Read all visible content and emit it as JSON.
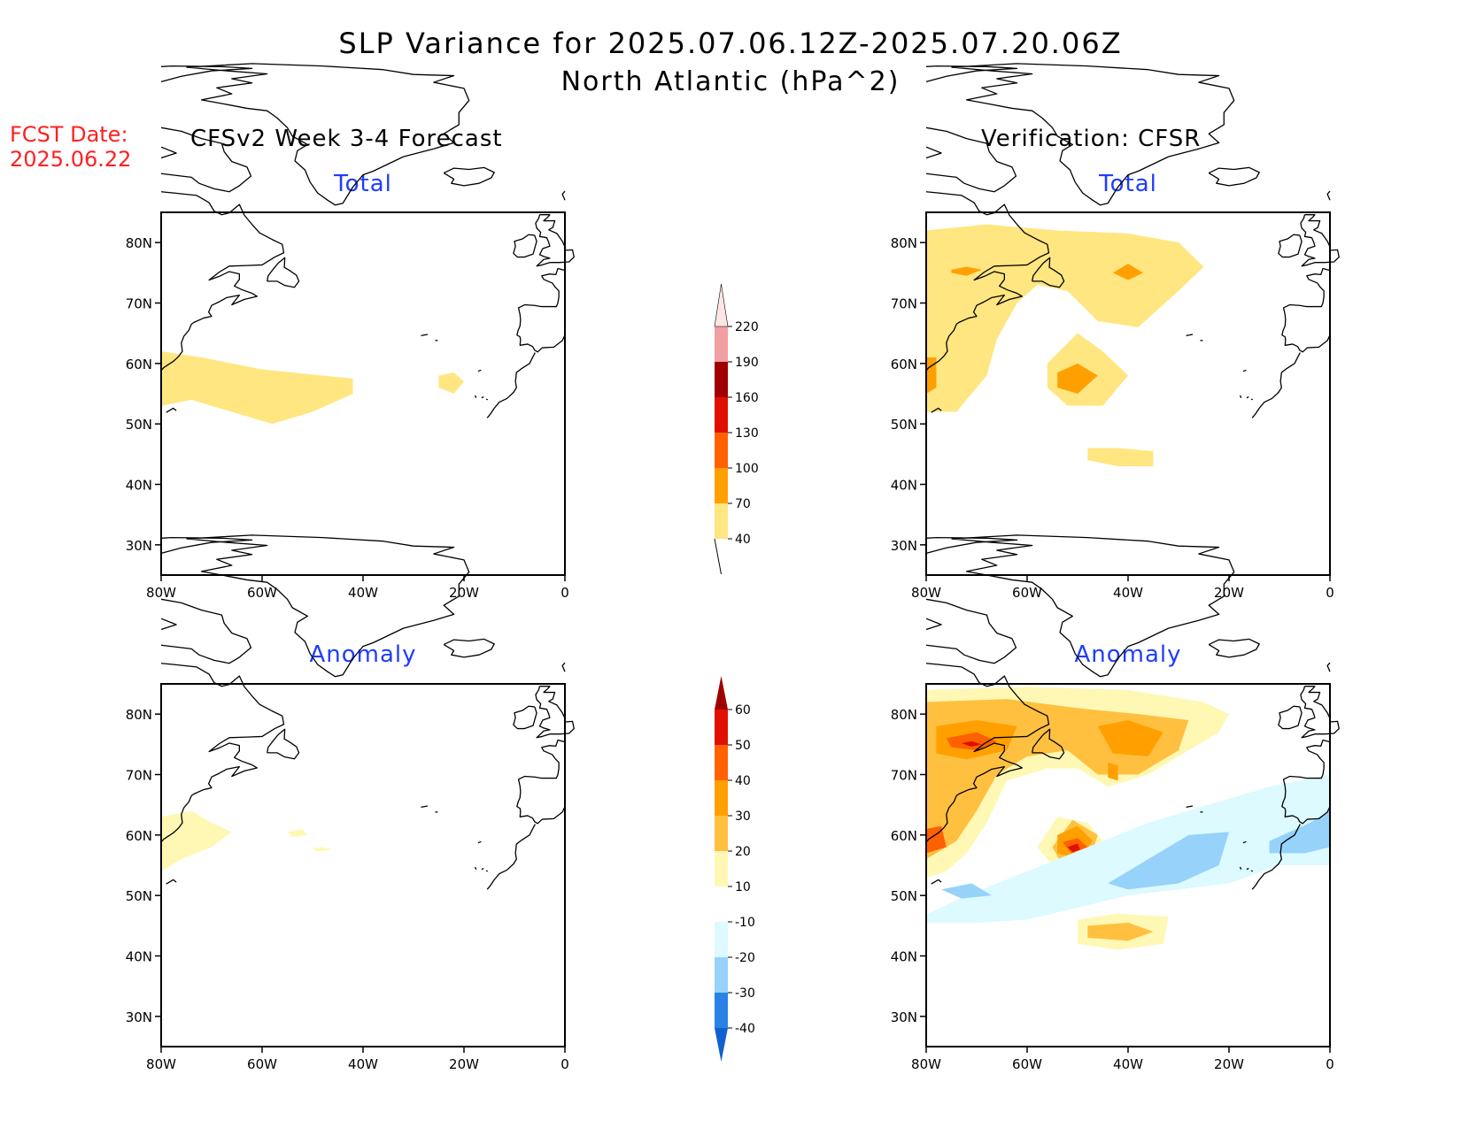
{
  "title": {
    "line1": "SLP Variance for 2025.07.06.12Z-2025.07.20.06Z",
    "line2": "North Atlantic (hPa^2)"
  },
  "fcst_date": {
    "label": "FCST Date:",
    "date": "2025.06.22"
  },
  "columns": {
    "left": "CFSv2 Week 3-4 Forecast",
    "right": "Verification: CFSR"
  },
  "panel_titles": {
    "total": "Total",
    "anomaly": "Anomaly"
  },
  "axes": {
    "x_ticks": [
      "80W",
      "60W",
      "40W",
      "20W",
      "0"
    ],
    "y_ticks": [
      "80N",
      "70N",
      "60N",
      "50N",
      "40N",
      "30N"
    ]
  },
  "colors": {
    "title_text": "#000000",
    "fcst_text": "#ff2020",
    "subtitle_text": "#1f3cff"
  },
  "chart_data": {
    "type": "heatmap",
    "domain": {
      "lon_range": [
        -80,
        0
      ],
      "lat_range": [
        25,
        85
      ]
    },
    "total_colorbar": {
      "levels": [
        40,
        70,
        100,
        130,
        160,
        190,
        220
      ],
      "colors": [
        "#ffe680",
        "#ffa000",
        "#ff6000",
        "#e01000",
        "#a00000",
        "#f0a0a0",
        "#ffe6e6"
      ]
    },
    "anomaly_colorbar": {
      "levels": [
        -40,
        -30,
        -20,
        -10,
        10,
        20,
        30,
        40,
        50,
        60
      ],
      "colors": [
        "#1060d0",
        "#2a82e6",
        "#96d2fa",
        "#dcfaff",
        "#ffffff",
        "#fff8b4",
        "#ffc040",
        "#ffa000",
        "#ff6000",
        "#e01000",
        "#a00000"
      ]
    },
    "panels": [
      {
        "id": "forecast-total",
        "regions": [
          {
            "level": 40,
            "polygon": [
              [
                -80,
                62
              ],
              [
                -72,
                61
              ],
              [
                -60,
                59
              ],
              [
                -48,
                58
              ],
              [
                -42,
                57.5
              ],
              [
                -42,
                55
              ],
              [
                -50,
                52
              ],
              [
                -58,
                50
              ],
              [
                -66,
                52
              ],
              [
                -74,
                54
              ],
              [
                -80,
                53
              ]
            ]
          },
          {
            "level": 40,
            "polygon": [
              [
                -25,
                58
              ],
              [
                -22,
                58.5
              ],
              [
                -20,
                57
              ],
              [
                -22,
                55
              ],
              [
                -25,
                56
              ]
            ]
          }
        ]
      },
      {
        "id": "verification-total",
        "regions": [
          {
            "level": 40,
            "polygon": [
              [
                -80,
                82
              ],
              [
                -68,
                83
              ],
              [
                -54,
                82
              ],
              [
                -40,
                81.5
              ],
              [
                -30,
                80
              ],
              [
                -25,
                76
              ],
              [
                -30,
                72
              ],
              [
                -38,
                66
              ],
              [
                -46,
                67
              ],
              [
                -52,
                72
              ],
              [
                -58,
                73
              ],
              [
                -62,
                70
              ],
              [
                -66,
                64
              ],
              [
                -68,
                58
              ],
              [
                -74,
                52
              ],
              [
                -80,
                52
              ]
            ]
          },
          {
            "level": 40,
            "polygon": [
              [
                -56,
                60
              ],
              [
                -50,
                65
              ],
              [
                -45,
                62
              ],
              [
                -40,
                58
              ],
              [
                -45,
                53
              ],
              [
                -52,
                53
              ],
              [
                -56,
                56
              ]
            ]
          },
          {
            "level": 40,
            "polygon": [
              [
                -48,
                46
              ],
              [
                -42,
                46
              ],
              [
                -35,
                45.5
              ],
              [
                -35,
                43
              ],
              [
                -42,
                43
              ],
              [
                -48,
                44
              ]
            ]
          },
          {
            "level": 70,
            "polygon": [
              [
                -75,
                75.5
              ],
              [
                -72,
                76
              ],
              [
                -69,
                75.5
              ],
              [
                -72,
                74.5
              ],
              [
                -75,
                75
              ]
            ]
          },
          {
            "level": 70,
            "polygon": [
              [
                -43,
                75
              ],
              [
                -40,
                76.5
              ],
              [
                -37,
                75
              ],
              [
                -40,
                73.8
              ]
            ]
          },
          {
            "level": 70,
            "polygon": [
              [
                -80,
                61
              ],
              [
                -78,
                61
              ],
              [
                -78,
                56
              ],
              [
                -80,
                55
              ]
            ]
          },
          {
            "level": 70,
            "polygon": [
              [
                -54,
                58.5
              ],
              [
                -50,
                60
              ],
              [
                -46,
                58
              ],
              [
                -50,
                55
              ],
              [
                -54,
                56
              ]
            ]
          }
        ]
      },
      {
        "id": "forecast-anomaly",
        "regions": [
          {
            "level": 10,
            "polygon": [
              [
                -80,
                63
              ],
              [
                -74,
                64
              ],
              [
                -70,
                62
              ],
              [
                -66,
                60.5
              ],
              [
                -70,
                58
              ],
              [
                -76,
                56
              ],
              [
                -80,
                54
              ]
            ]
          },
          {
            "level": 10,
            "polygon": [
              [
                -55,
                60.5
              ],
              [
                -52,
                61
              ],
              [
                -51,
                60
              ],
              [
                -54,
                59.6
              ]
            ]
          },
          {
            "level": 10,
            "polygon": [
              [
                -50,
                57.8
              ],
              [
                -48,
                58
              ],
              [
                -46,
                57.6
              ],
              [
                -49,
                57.3
              ]
            ]
          }
        ]
      },
      {
        "id": "verification-anomaly",
        "regions": [
          {
            "level": 10,
            "polygon": [
              [
                -80,
                84
              ],
              [
                -60,
                84.5
              ],
              [
                -40,
                84
              ],
              [
                -25,
                82
              ],
              [
                -20,
                80
              ],
              [
                -22,
                77
              ],
              [
                -30,
                73
              ],
              [
                -36,
                70
              ],
              [
                -44,
                68
              ],
              [
                -50,
                71
              ],
              [
                -56,
                71
              ],
              [
                -64,
                69
              ],
              [
                -68,
                62
              ],
              [
                -72,
                57
              ],
              [
                -76,
                54
              ],
              [
                -80,
                53
              ]
            ]
          },
          {
            "level": 10,
            "polygon": [
              [
                -58,
                58
              ],
              [
                -54,
                63
              ],
              [
                -48,
                62
              ],
              [
                -44,
                58
              ],
              [
                -48,
                54
              ],
              [
                -54,
                54
              ]
            ]
          },
          {
            "level": 10,
            "polygon": [
              [
                -50,
                46
              ],
              [
                -42,
                47
              ],
              [
                -32,
                46.5
              ],
              [
                -33,
                42
              ],
              [
                -42,
                41
              ],
              [
                -50,
                42
              ]
            ]
          },
          {
            "level": 20,
            "polygon": [
              [
                -80,
                82
              ],
              [
                -64,
                82.5
              ],
              [
                -50,
                81
              ],
              [
                -38,
                80
              ],
              [
                -28,
                79
              ],
              [
                -30,
                74
              ],
              [
                -38,
                70
              ],
              [
                -46,
                70
              ],
              [
                -52,
                74
              ],
              [
                -60,
                73
              ],
              [
                -66,
                70
              ],
              [
                -70,
                64
              ],
              [
                -74,
                59
              ],
              [
                -80,
                56
              ]
            ]
          },
          {
            "level": 20,
            "polygon": [
              [
                -55,
                58
              ],
              [
                -51,
                62.5
              ],
              [
                -46,
                60
              ],
              [
                -48,
                55
              ],
              [
                -53,
                55
              ]
            ]
          },
          {
            "level": 20,
            "polygon": [
              [
                -48,
                45
              ],
              [
                -40,
                45.5
              ],
              [
                -35,
                44
              ],
              [
                -40,
                42.5
              ],
              [
                -48,
                43
              ]
            ]
          },
          {
            "level": 30,
            "polygon": [
              [
                -78,
                78
              ],
              [
                -70,
                79
              ],
              [
                -62,
                78
              ],
              [
                -64,
                74
              ],
              [
                -72,
                72.5
              ],
              [
                -78,
                73.5
              ]
            ]
          },
          {
            "level": 30,
            "polygon": [
              [
                -46,
                78
              ],
              [
                -40,
                79
              ],
              [
                -33,
                77
              ],
              [
                -36,
                73
              ],
              [
                -43,
                73.5
              ]
            ]
          },
          {
            "level": 30,
            "polygon": [
              [
                -44,
                72
              ],
              [
                -42,
                71.5
              ],
              [
                -42,
                69
              ],
              [
                -44,
                69.5
              ]
            ]
          },
          {
            "level": 30,
            "polygon": [
              [
                -54,
                60
              ],
              [
                -50,
                61.5
              ],
              [
                -47,
                59
              ],
              [
                -50,
                56
              ],
              [
                -54,
                57
              ]
            ]
          },
          {
            "level": 40,
            "polygon": [
              [
                -76,
                76
              ],
              [
                -70,
                77
              ],
              [
                -66,
                75.5
              ],
              [
                -70,
                74
              ],
              [
                -75,
                74.5
              ]
            ]
          },
          {
            "level": 40,
            "polygon": [
              [
                -80,
                61
              ],
              [
                -77,
                61.5
              ],
              [
                -76,
                58
              ],
              [
                -80,
                57
              ]
            ]
          },
          {
            "level": 40,
            "polygon": [
              [
                -53,
                58.8
              ],
              [
                -50,
                59.5
              ],
              [
                -48,
                58
              ],
              [
                -51,
                56.8
              ]
            ]
          },
          {
            "level": 50,
            "polygon": [
              [
                -73,
                75.2
              ],
              [
                -71,
                75.5
              ],
              [
                -69,
                75
              ],
              [
                -71,
                74.6
              ]
            ]
          },
          {
            "level": 50,
            "polygon": [
              [
                -52,
                58
              ],
              [
                -50,
                58.6
              ],
              [
                -49.5,
                57.6
              ],
              [
                -51,
                57.2
              ]
            ]
          },
          {
            "level": -10,
            "polygon": [
              [
                -80,
                46.8
              ],
              [
                -72,
                50
              ],
              [
                -60,
                54
              ],
              [
                -48,
                58
              ],
              [
                -36,
                62
              ],
              [
                -24,
                65
              ],
              [
                -12,
                68
              ],
              [
                0,
                70
              ],
              [
                0,
                55
              ],
              [
                -10,
                55
              ],
              [
                -20,
                52
              ],
              [
                -30,
                51
              ],
              [
                -40,
                50
              ],
              [
                -50,
                48
              ],
              [
                -60,
                46
              ],
              [
                -70,
                45.5
              ],
              [
                -80,
                45.5
              ]
            ]
          },
          {
            "level": -20,
            "polygon": [
              [
                -77,
                51
              ],
              [
                -71,
                52
              ],
              [
                -67,
                50
              ],
              [
                -73,
                49.5
              ]
            ]
          },
          {
            "level": -20,
            "polygon": [
              [
                -44,
                52
              ],
              [
                -36,
                56
              ],
              [
                -28,
                60
              ],
              [
                -20,
                60.5
              ],
              [
                -22,
                55
              ],
              [
                -30,
                52
              ],
              [
                -40,
                51
              ]
            ]
          },
          {
            "level": -20,
            "polygon": [
              [
                -12,
                59
              ],
              [
                -4,
                62
              ],
              [
                0,
                64
              ],
              [
                0,
                58
              ],
              [
                -5,
                57
              ],
              [
                -12,
                57
              ]
            ]
          }
        ]
      }
    ]
  }
}
